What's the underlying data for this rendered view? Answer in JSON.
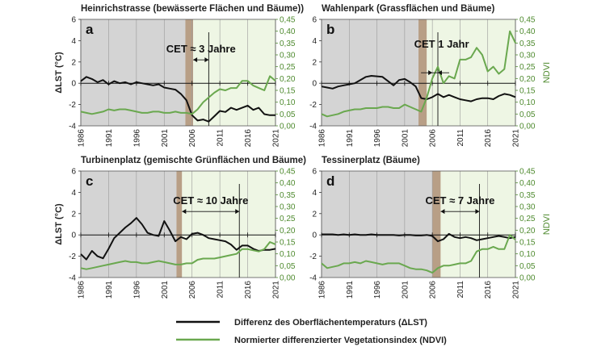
{
  "chart_data": [
    {
      "type": "line",
      "letter": "a",
      "title": "Heinrichstrasse (bewässerte Flächen und Bäume))",
      "ylabel": "ΔLST (°C)",
      "y2label": "",
      "xlim": [
        1986,
        2021
      ],
      "ylim": [
        -4,
        6
      ],
      "y2lim": [
        0,
        0.45
      ],
      "x_ticks": [
        "1986",
        "1991",
        "1996",
        "2001",
        "2006",
        "2011",
        "2016",
        "2021"
      ],
      "y_ticks": [
        "-4",
        "-2",
        "0",
        "2",
        "4",
        "6"
      ],
      "y2_ticks": [
        "0,00",
        "0,05",
        "0,10",
        "0,15",
        "0,20",
        "0,25",
        "0,30",
        "0,35",
        "0,40",
        "0,45"
      ],
      "grey_end": 2004.8,
      "brown_range": [
        2004.8,
        2006.2
      ],
      "cet_label": "CET ≈ 3 Jahre",
      "cet_range": [
        2006.2,
        2009.0
      ],
      "vline_x": 2009.0,
      "series": [
        {
          "x": [
            1986,
            1987,
            1988,
            1989,
            1990,
            1991,
            1992,
            1993,
            1994,
            1995,
            1996,
            1997,
            1998,
            1999,
            2000,
            2001,
            2002,
            2003,
            2004,
            2005,
            2006,
            2007,
            2008,
            2009,
            2010,
            2011,
            2012,
            2013,
            2014,
            2015,
            2016,
            2017,
            2018,
            2019,
            2020,
            2021
          ],
          "values": [
            0.2,
            0.6,
            0.4,
            0.1,
            0.3,
            -0.1,
            0.2,
            0,
            0.1,
            -0.1,
            0.1,
            0,
            -0.1,
            -0.2,
            -0.1,
            -0.4,
            -0.5,
            -0.6,
            -1.0,
            -1.6,
            -3.0,
            -3.5,
            -3.4,
            -3.6,
            -3.1,
            -2.6,
            -2.7,
            -2.3,
            -2.5,
            -2.3,
            -2.1,
            -2.5,
            -2.3,
            -2.9,
            -3.0,
            -3.0
          ]
        },
        {
          "x": [
            1986,
            1987,
            1988,
            1989,
            1990,
            1991,
            1992,
            1993,
            1994,
            1995,
            1996,
            1997,
            1998,
            1999,
            2000,
            2001,
            2002,
            2003,
            2004,
            2005,
            2006,
            2007,
            2008,
            2009,
            2010,
            2011,
            2012,
            2013,
            2014,
            2015,
            2016,
            2017,
            2018,
            2019,
            2020,
            2021
          ],
          "values": [
            0.06,
            0.055,
            0.05,
            0.055,
            0.06,
            0.07,
            0.065,
            0.07,
            0.07,
            0.065,
            0.06,
            0.055,
            0.055,
            0.06,
            0.06,
            0.055,
            0.055,
            0.06,
            0.055,
            0.055,
            0.05,
            0.07,
            0.1,
            0.12,
            0.14,
            0.155,
            0.15,
            0.16,
            0.16,
            0.19,
            0.19,
            0.17,
            0.16,
            0.15,
            0.21,
            0.19
          ]
        }
      ]
    },
    {
      "type": "line",
      "letter": "b",
      "title": "Wahlenpark (Grassflächen und Bäume)",
      "ylabel": "",
      "y2label": "NDVI",
      "xlim": [
        1986,
        2021
      ],
      "ylim": [
        -4,
        6
      ],
      "y2lim": [
        0,
        0.45
      ],
      "x_ticks": [
        "1986",
        "1991",
        "1996",
        "2001",
        "2006",
        "2011",
        "2016",
        "2021"
      ],
      "y_ticks": [
        "-4",
        "-2",
        "0",
        "2",
        "4",
        "6"
      ],
      "y2_ticks": [
        "0,00",
        "0,05",
        "0,10",
        "0,15",
        "0,20",
        "0,25",
        "0,30",
        "0,35",
        "0,40",
        "0,45"
      ],
      "grey_end": 2003.5,
      "brown_range": [
        2003.5,
        2005.0
      ],
      "cet_label": "CET 1 Jahr",
      "cet_range": [
        2006.0,
        2007.0
      ],
      "vline_x": 2007.0,
      "series": [
        {
          "x": [
            1986,
            1987,
            1988,
            1989,
            1990,
            1991,
            1992,
            1993,
            1994,
            1995,
            1996,
            1997,
            1998,
            1999,
            2000,
            2001,
            2002,
            2003,
            2004,
            2005,
            2006,
            2007,
            2008,
            2009,
            2010,
            2011,
            2012,
            2013,
            2014,
            2015,
            2016,
            2017,
            2018,
            2019,
            2020,
            2021
          ],
          "values": [
            -0.3,
            -0.4,
            -0.5,
            -0.3,
            -0.2,
            -0.1,
            0,
            0.3,
            0.6,
            0.7,
            0.65,
            0.6,
            0.2,
            -0.2,
            0.3,
            0.4,
            0.1,
            -0.3,
            -1.4,
            -1.5,
            -1.3,
            -1.0,
            -1.3,
            -1.1,
            -1.3,
            -1.5,
            -1.6,
            -1.7,
            -1.5,
            -1.4,
            -1.4,
            -1.5,
            -1.2,
            -1.0,
            -1.1,
            -1.3
          ]
        },
        {
          "x": [
            1986,
            1987,
            1988,
            1989,
            1990,
            1991,
            1992,
            1993,
            1994,
            1995,
            1996,
            1997,
            1998,
            1999,
            2000,
            2001,
            2002,
            2003,
            2004,
            2005,
            2006,
            2007,
            2008,
            2009,
            2010,
            2011,
            2012,
            2013,
            2014,
            2015,
            2016,
            2017,
            2018,
            2019,
            2020,
            2021
          ],
          "values": [
            0.05,
            0.04,
            0.045,
            0.05,
            0.06,
            0.065,
            0.07,
            0.07,
            0.075,
            0.075,
            0.075,
            0.08,
            0.08,
            0.075,
            0.075,
            0.09,
            0.08,
            0.07,
            0.06,
            0.12,
            0.2,
            0.25,
            0.18,
            0.21,
            0.2,
            0.28,
            0.28,
            0.29,
            0.33,
            0.3,
            0.23,
            0.25,
            0.22,
            0.24,
            0.4,
            0.35
          ]
        }
      ]
    },
    {
      "type": "line",
      "letter": "c",
      "title": "Turbinenplatz (gemischte Grünflächen und Bäume)",
      "ylabel": "ΔLST (°C)",
      "y2label": "",
      "xlim": [
        1986,
        2021
      ],
      "ylim": [
        -4,
        6
      ],
      "y2lim": [
        0,
        0.45
      ],
      "x_ticks": [
        "1986",
        "1991",
        "1996",
        "2001",
        "2006",
        "2011",
        "2016",
        "2021"
      ],
      "y_ticks": [
        "-4",
        "-2",
        "0",
        "2",
        "4",
        "6"
      ],
      "y2_ticks": [
        "0,00",
        "0,05",
        "0,10",
        "0,15",
        "0,20",
        "0,25",
        "0,30",
        "0,35",
        "0,40",
        "0,45"
      ],
      "grey_end": 2003.2,
      "brown_range": [
        2003.2,
        2004.2
      ],
      "cet_label": "CET ≈ 10 Jahre",
      "cet_range": [
        2004.2,
        2014.5
      ],
      "vline_x": 2014.5,
      "series": [
        {
          "x": [
            1986,
            1987,
            1988,
            1989,
            1990,
            1991,
            1992,
            1993,
            1994,
            1995,
            1996,
            1997,
            1998,
            1999,
            2000,
            2001,
            2002,
            2003,
            2004,
            2005,
            2006,
            2007,
            2008,
            2009,
            2010,
            2011,
            2012,
            2013,
            2014,
            2015,
            2016,
            2017,
            2018,
            2019,
            2020,
            2021
          ],
          "values": [
            -1.8,
            -2.3,
            -1.5,
            -2.0,
            -2.2,
            -1.3,
            -0.3,
            0.2,
            0.7,
            1.1,
            1.6,
            1.0,
            0.2,
            0,
            -0.1,
            1.3,
            0.4,
            -0.6,
            -0.2,
            -0.4,
            0.1,
            0.2,
            0,
            -0.3,
            -0.4,
            -0.5,
            -0.6,
            -0.9,
            -1.4,
            -1.0,
            -1.0,
            -1.3,
            -1.5,
            -1.4,
            -1.4,
            -1.3
          ]
        },
        {
          "x": [
            1986,
            1987,
            1988,
            1989,
            1990,
            1991,
            1992,
            1993,
            1994,
            1995,
            1996,
            1997,
            1998,
            1999,
            2000,
            2001,
            2002,
            2003,
            2004,
            2005,
            2006,
            2007,
            2008,
            2009,
            2010,
            2011,
            2012,
            2013,
            2014,
            2015,
            2016,
            2017,
            2018,
            2019,
            2020,
            2021
          ],
          "values": [
            0.04,
            0.035,
            0.04,
            0.045,
            0.05,
            0.055,
            0.06,
            0.065,
            0.07,
            0.065,
            0.065,
            0.06,
            0.06,
            0.065,
            0.07,
            0.065,
            0.06,
            0.055,
            0.055,
            0.06,
            0.06,
            0.075,
            0.08,
            0.08,
            0.08,
            0.085,
            0.09,
            0.095,
            0.1,
            0.12,
            0.12,
            0.115,
            0.11,
            0.12,
            0.15,
            0.14
          ]
        }
      ]
    },
    {
      "type": "line",
      "letter": "d",
      "title": "Tessinerplatz (Bäume)",
      "ylabel": "",
      "y2label": "NDVI",
      "xlim": [
        1986,
        2021
      ],
      "ylim": [
        -4,
        6
      ],
      "y2lim": [
        0,
        0.45
      ],
      "x_ticks": [
        "1986",
        "1991",
        "1996",
        "2001",
        "2006",
        "2011",
        "2016",
        "2021"
      ],
      "y_ticks": [
        "-4",
        "-2",
        "0",
        "2",
        "4",
        "6"
      ],
      "y2_ticks": [
        "0,00",
        "0,05",
        "0,10",
        "0,15",
        "0,20",
        "0,25",
        "0,30",
        "0,35",
        "0,40",
        "0,45"
      ],
      "grey_end": 2006.0,
      "brown_range": [
        2006.0,
        2007.5
      ],
      "cet_label": "CET ≈ 7 Jahre",
      "cet_range": [
        2007.5,
        2014.5
      ],
      "vline_x": 2014.5,
      "series": [
        {
          "x": [
            1986,
            1987,
            1988,
            1989,
            1990,
            1991,
            1992,
            1993,
            1994,
            1995,
            1996,
            1997,
            1998,
            1999,
            2000,
            2001,
            2002,
            2003,
            2004,
            2005,
            2006,
            2007,
            2008,
            2009,
            2010,
            2011,
            2012,
            2013,
            2014,
            2015,
            2016,
            2017,
            2018,
            2019,
            2020,
            2021
          ],
          "values": [
            0.05,
            0.05,
            0.05,
            0,
            0.05,
            0,
            0.05,
            0,
            0,
            0.05,
            0,
            0,
            0,
            0,
            -0.05,
            0,
            0,
            -0.05,
            -0.05,
            0,
            -0.1,
            -0.6,
            -0.4,
            0.1,
            -0.2,
            -0.3,
            -0.2,
            -0.3,
            -0.5,
            -0.4,
            -0.3,
            -0.2,
            -0.1,
            -0.2,
            -0.3,
            -0.2
          ]
        },
        {
          "x": [
            1986,
            1987,
            1988,
            1989,
            1990,
            1991,
            1992,
            1993,
            1994,
            1995,
            1996,
            1997,
            1998,
            1999,
            2000,
            2001,
            2002,
            2003,
            2004,
            2005,
            2006,
            2007,
            2008,
            2009,
            2010,
            2011,
            2012,
            2013,
            2014,
            2015,
            2016,
            2017,
            2018,
            2019,
            2020,
            2021
          ],
          "values": [
            0.06,
            0.04,
            0.045,
            0.05,
            0.06,
            0.06,
            0.065,
            0.06,
            0.07,
            0.065,
            0.06,
            0.055,
            0.06,
            0.06,
            0.06,
            0.05,
            0.04,
            0.035,
            0.035,
            0.03,
            0.02,
            0.04,
            0.05,
            0.05,
            0.055,
            0.06,
            0.06,
            0.07,
            0.11,
            0.12,
            0.12,
            0.13,
            0.12,
            0.12,
            0.18,
            0.16
          ]
        }
      ]
    }
  ],
  "legend": {
    "items": [
      {
        "label": "Differenz des Oberflächentemperaturs (ΔLST)",
        "color": "#111111"
      },
      {
        "label": "Normierter differenzierter Vegetationsindex (NDVI)",
        "color": "#6aa84f"
      }
    ]
  },
  "colors": {
    "lst": "#111111",
    "ndvi": "#6aa84f",
    "grey_shade": "#d4d4d4",
    "brown_shade": "#b89f86",
    "green_shade": "#eef6e4"
  }
}
